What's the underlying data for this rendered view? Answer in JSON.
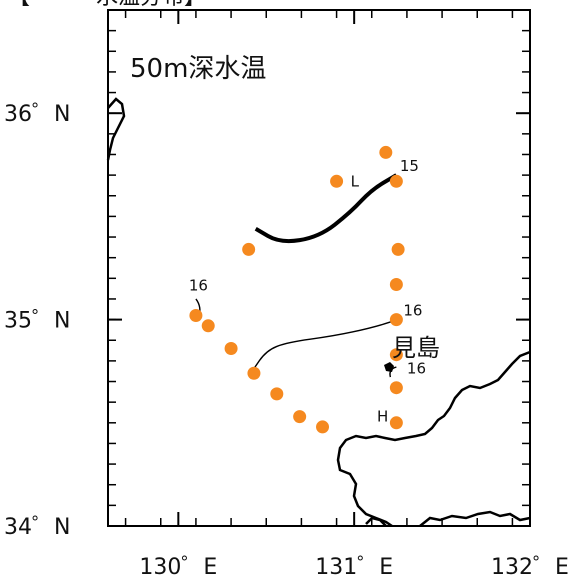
{
  "header_fragment": "【　　　水温分布】",
  "map": {
    "title": "50m深水温",
    "place_label": "見島",
    "station_color": "#f5891f",
    "x_ticks": [
      {
        "value": 130,
        "label": "130゜E"
      },
      {
        "value": 131,
        "label": "131゜E"
      },
      {
        "value": 132,
        "label": "132゜E"
      }
    ],
    "y_ticks": [
      {
        "value": 34,
        "label": "34゜N"
      },
      {
        "value": 35,
        "label": "35゜N"
      },
      {
        "value": 36,
        "label": "36゜N"
      }
    ],
    "stations": [
      {
        "lon": 131.18,
        "lat": 35.81
      },
      {
        "lon": 130.9,
        "lat": 35.67
      },
      {
        "lon": 131.24,
        "lat": 35.67
      },
      {
        "lon": 130.4,
        "lat": 35.34
      },
      {
        "lon": 131.25,
        "lat": 35.34
      },
      {
        "lon": 131.24,
        "lat": 35.17
      },
      {
        "lon": 130.1,
        "lat": 35.02
      },
      {
        "lon": 130.17,
        "lat": 34.97
      },
      {
        "lon": 131.24,
        "lat": 35.0
      },
      {
        "lon": 130.3,
        "lat": 34.86
      },
      {
        "lon": 131.24,
        "lat": 34.83
      },
      {
        "lon": 130.43,
        "lat": 34.74
      },
      {
        "lon": 131.24,
        "lat": 34.67
      },
      {
        "lon": 130.56,
        "lat": 34.64
      },
      {
        "lon": 130.69,
        "lat": 34.53
      },
      {
        "lon": 130.82,
        "lat": 34.48
      },
      {
        "lon": 131.24,
        "lat": 34.5
      }
    ],
    "contours": [
      {
        "value_label": "15",
        "weight": "bold",
        "points": [
          [
            130.44,
            35.44
          ],
          [
            130.58,
            35.37
          ],
          [
            130.8,
            35.4
          ],
          [
            130.98,
            35.52
          ],
          [
            131.1,
            35.63
          ],
          [
            131.24,
            35.7
          ]
        ]
      },
      {
        "value_label": "16",
        "weight": "thin",
        "points": [
          [
            130.42,
            34.75
          ],
          [
            130.5,
            34.85
          ],
          [
            130.62,
            34.89
          ],
          [
            130.88,
            34.92
          ],
          [
            131.1,
            34.96
          ],
          [
            131.25,
            35.0
          ]
        ]
      }
    ],
    "contour_labels": [
      {
        "text": "15",
        "lon": 131.26,
        "lat": 35.72
      },
      {
        "text": "16",
        "lon": 130.06,
        "lat": 35.14
      },
      {
        "text": "16",
        "lon": 131.28,
        "lat": 35.02
      },
      {
        "text": "16",
        "lon": 131.3,
        "lat": 34.74
      }
    ],
    "pressure_labels": [
      {
        "text": "L",
        "lon": 130.98,
        "lat": 35.67
      },
      {
        "text": "H",
        "lon": 131.13,
        "lat": 34.53
      }
    ]
  }
}
